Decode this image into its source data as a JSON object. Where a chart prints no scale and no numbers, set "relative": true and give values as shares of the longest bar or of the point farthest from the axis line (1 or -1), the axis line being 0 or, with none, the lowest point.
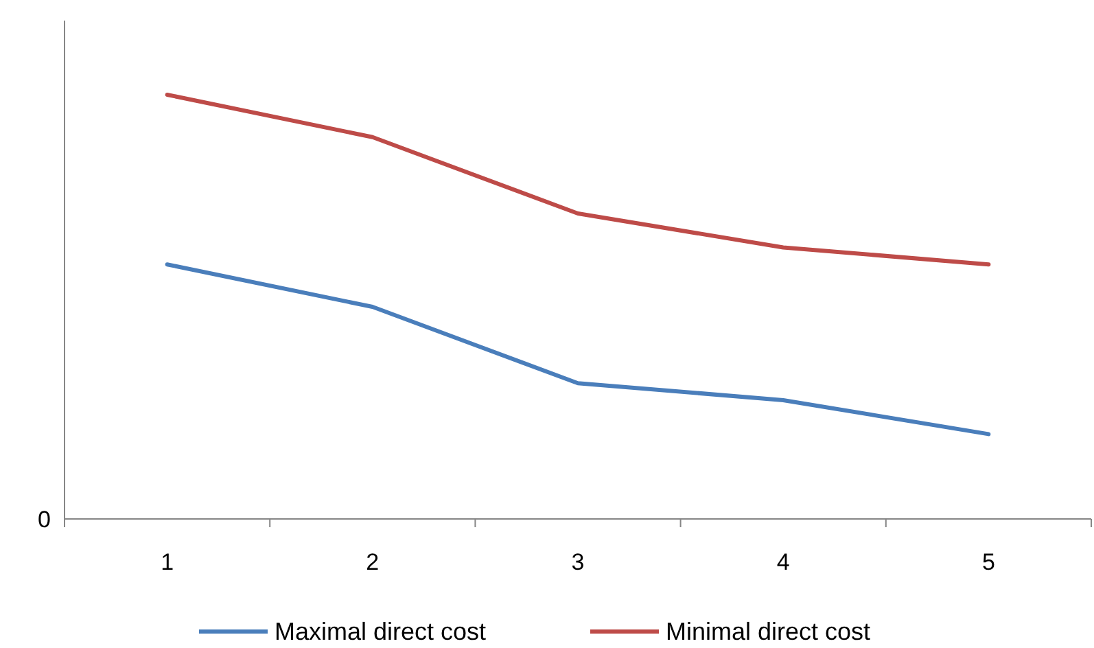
{
  "chart_data": {
    "type": "line",
    "relative": true,
    "categories": [
      "1",
      "2",
      "3",
      "4",
      "5"
    ],
    "series": [
      {
        "name": "Maximal direct cost",
        "color": "#4a7ebb",
        "values": [
          0.6,
          0.5,
          0.32,
          0.28,
          0.2
        ]
      },
      {
        "name": "Minimal direct cost",
        "color": "#be4b48",
        "values": [
          1,
          0.9,
          0.72,
          0.64,
          0.6
        ]
      }
    ],
    "annotations": [
      "0"
    ],
    "legend": "bottom",
    "marker": "none",
    "line_style": "solid",
    "grid": false
  }
}
